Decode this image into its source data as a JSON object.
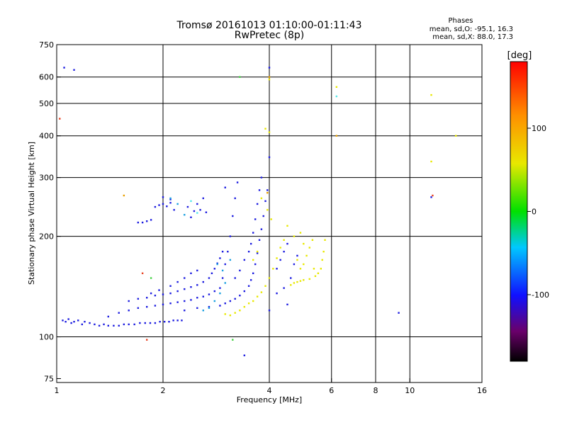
{
  "chart_data": {
    "type": "scatter",
    "title": "Tromsø 20161013 01:10:00-01:11:43",
    "subtitle": "RwPretec (8p)",
    "stats": {
      "heading": "Phases",
      "line_o": "mean, sd,O: -95.1, 16.3",
      "line_x": "mean, sd,X:  88.0, 17.3"
    },
    "xlabel": "Frequency [MHz]",
    "ylabel": "Stationary phase Virtual Height [km]",
    "x_scale": "log",
    "y_scale": "log",
    "xlim": [
      1,
      16
    ],
    "ylim": [
      73,
      750
    ],
    "x_ticks": [
      1,
      2,
      4,
      6,
      8,
      10,
      16
    ],
    "x_tick_labels": [
      "1",
      "2",
      "4",
      "6",
      "8",
      "10",
      "16"
    ],
    "x_grid": [
      2,
      4,
      6,
      8,
      10
    ],
    "y_ticks": [
      75,
      100,
      200,
      300,
      400,
      500,
      600,
      750
    ],
    "y_tick_labels": [
      "75",
      "100",
      "200",
      "300",
      "400",
      "500",
      "600",
      "750"
    ],
    "y_grid": [
      100,
      200,
      300,
      400,
      500,
      600
    ],
    "grid": true,
    "colorbar": {
      "label": "[deg]",
      "range": [
        -180,
        180
      ],
      "ticks": [
        -100,
        0,
        100
      ],
      "tick_labels": [
        "-100",
        "0",
        "100"
      ]
    },
    "series": [
      {
        "color": "#1c1ce0",
        "points": [
          [
            1.04,
            112
          ],
          [
            1.06,
            111
          ],
          [
            1.08,
            113
          ],
          [
            1.1,
            110
          ],
          [
            1.12,
            111
          ],
          [
            1.15,
            112
          ],
          [
            1.18,
            109
          ],
          [
            1.2,
            111
          ],
          [
            1.24,
            110
          ],
          [
            1.28,
            109
          ],
          [
            1.32,
            108
          ],
          [
            1.36,
            109
          ],
          [
            1.4,
            108
          ],
          [
            1.45,
            108
          ],
          [
            1.5,
            108
          ],
          [
            1.55,
            109
          ],
          [
            1.6,
            109
          ],
          [
            1.66,
            109
          ],
          [
            1.72,
            110
          ],
          [
            1.78,
            110
          ],
          [
            1.84,
            110
          ],
          [
            1.9,
            110
          ],
          [
            1.96,
            111
          ],
          [
            2.02,
            111
          ],
          [
            2.08,
            111
          ],
          [
            2.14,
            112
          ],
          [
            2.2,
            112
          ],
          [
            2.26,
            112
          ],
          [
            1.4,
            115
          ],
          [
            1.5,
            118
          ],
          [
            1.6,
            120
          ],
          [
            1.7,
            122
          ],
          [
            1.8,
            123
          ],
          [
            1.9,
            124
          ],
          [
            2.0,
            125
          ],
          [
            2.1,
            126
          ],
          [
            2.2,
            127
          ],
          [
            2.3,
            128
          ],
          [
            2.4,
            129
          ],
          [
            2.5,
            131
          ],
          [
            2.6,
            132
          ],
          [
            2.7,
            134
          ],
          [
            2.8,
            137
          ],
          [
            1.6,
            128
          ],
          [
            1.7,
            130
          ],
          [
            1.8,
            131
          ],
          [
            1.9,
            133
          ],
          [
            2.0,
            134
          ],
          [
            2.1,
            135
          ],
          [
            2.2,
            137
          ],
          [
            2.3,
            139
          ],
          [
            2.4,
            141
          ],
          [
            2.5,
            143
          ],
          [
            2.6,
            146
          ],
          [
            2.7,
            150
          ],
          [
            2.75,
            155
          ],
          [
            2.8,
            160
          ],
          [
            2.85,
            166
          ],
          [
            2.9,
            172
          ],
          [
            2.95,
            180
          ],
          [
            1.85,
            135
          ],
          [
            1.95,
            138
          ],
          [
            2.1,
            142
          ],
          [
            2.2,
            146
          ],
          [
            2.3,
            150
          ],
          [
            2.4,
            155
          ],
          [
            2.5,
            158
          ],
          [
            2.3,
            120
          ],
          [
            2.5,
            122
          ],
          [
            2.7,
            123
          ],
          [
            2.9,
            124
          ],
          [
            3.0,
            126
          ],
          [
            3.1,
            128
          ],
          [
            3.2,
            130
          ],
          [
            3.3,
            133
          ],
          [
            3.4,
            137
          ],
          [
            3.5,
            142
          ],
          [
            3.55,
            148
          ],
          [
            3.6,
            155
          ],
          [
            3.65,
            165
          ],
          [
            3.7,
            178
          ],
          [
            3.75,
            195
          ],
          [
            3.8,
            210
          ],
          [
            3.85,
            230
          ],
          [
            3.9,
            255
          ],
          [
            3.95,
            275
          ],
          [
            3.2,
            150
          ],
          [
            3.3,
            158
          ],
          [
            3.4,
            170
          ],
          [
            3.5,
            180
          ],
          [
            3.55,
            190
          ],
          [
            3.6,
            205
          ],
          [
            3.65,
            225
          ],
          [
            3.7,
            250
          ],
          [
            3.75,
            275
          ],
          [
            3.8,
            300
          ],
          [
            2.9,
            140
          ],
          [
            2.95,
            150
          ],
          [
            3.0,
            165
          ],
          [
            3.05,
            180
          ],
          [
            3.1,
            200
          ],
          [
            3.15,
            230
          ],
          [
            3.2,
            260
          ],
          [
            3.25,
            290
          ],
          [
            3.0,
            280
          ],
          [
            1.7,
            220
          ],
          [
            1.75,
            220
          ],
          [
            1.8,
            222
          ],
          [
            1.85,
            224
          ],
          [
            1.9,
            245
          ],
          [
            1.95,
            248
          ],
          [
            2.0,
            250
          ],
          [
            2.05,
            246
          ],
          [
            2.1,
            252
          ],
          [
            2.15,
            240
          ],
          [
            2.0,
            262
          ],
          [
            2.1,
            258
          ],
          [
            2.35,
            245
          ],
          [
            2.45,
            238
          ],
          [
            2.55,
            240
          ],
          [
            2.65,
            236
          ],
          [
            2.5,
            250
          ],
          [
            2.4,
            228
          ],
          [
            2.6,
            260
          ],
          [
            4.2,
            160
          ],
          [
            4.3,
            170
          ],
          [
            4.4,
            180
          ],
          [
            4.5,
            190
          ],
          [
            4.4,
            140
          ],
          [
            4.6,
            150
          ],
          [
            4.2,
            135
          ],
          [
            4.7,
            165
          ],
          [
            4.8,
            175
          ],
          [
            4.5,
            125
          ],
          [
            4.0,
            120
          ],
          [
            1.05,
            640
          ],
          [
            1.12,
            630
          ],
          [
            4.0,
            640
          ],
          [
            4.0,
            345
          ],
          [
            11.5,
            262
          ],
          [
            9.3,
            118
          ],
          [
            3.4,
            88
          ]
        ]
      },
      {
        "color": "#19a0e0",
        "points": [
          [
            2.6,
            120
          ],
          [
            2.7,
            122
          ],
          [
            2.8,
            128
          ],
          [
            2.9,
            135
          ],
          [
            3.0,
            145
          ],
          [
            3.1,
            170
          ],
          [
            2.85,
            165
          ],
          [
            2.95,
            158
          ],
          [
            2.3,
            232
          ],
          [
            2.2,
            250
          ],
          [
            2.1,
            260
          ]
        ]
      },
      {
        "color": "#e8e800",
        "points": [
          [
            3.0,
            117
          ],
          [
            3.1,
            116
          ],
          [
            3.2,
            118
          ],
          [
            3.3,
            120
          ],
          [
            3.4,
            123
          ],
          [
            3.5,
            126
          ],
          [
            3.6,
            128
          ],
          [
            3.7,
            132
          ],
          [
            3.8,
            136
          ],
          [
            3.9,
            142
          ],
          [
            4.0,
            150
          ],
          [
            4.1,
            160
          ],
          [
            4.2,
            172
          ],
          [
            4.3,
            185
          ],
          [
            4.4,
            195
          ],
          [
            3.95,
            240
          ],
          [
            3.8,
            260
          ],
          [
            4.05,
            225
          ],
          [
            4.6,
            143
          ],
          [
            4.7,
            145
          ],
          [
            4.8,
            146
          ],
          [
            4.9,
            147
          ],
          [
            5.0,
            148
          ],
          [
            5.2,
            149
          ],
          [
            5.4,
            152
          ],
          [
            5.5,
            155
          ],
          [
            5.6,
            160
          ],
          [
            5.65,
            170
          ],
          [
            5.7,
            180
          ],
          [
            5.75,
            195
          ],
          [
            5.0,
            165
          ],
          [
            5.1,
            175
          ],
          [
            5.2,
            185
          ],
          [
            5.3,
            195
          ],
          [
            4.9,
            160
          ],
          [
            4.8,
            170
          ],
          [
            5.35,
            160
          ],
          [
            4.5,
            215
          ],
          [
            4.7,
            200
          ],
          [
            4.9,
            205
          ],
          [
            5.0,
            190
          ],
          [
            3.6,
            170
          ],
          [
            3.7,
            180
          ],
          [
            4.0,
            410
          ],
          [
            3.9,
            420
          ],
          [
            4.0,
            590
          ],
          [
            6.2,
            560
          ],
          [
            11.5,
            530
          ],
          [
            13.5,
            400
          ],
          [
            11.5,
            335
          ]
        ]
      },
      {
        "color": "#e8a000",
        "points": [
          [
            1.55,
            265
          ],
          [
            4.0,
            600
          ],
          [
            6.2,
            400
          ],
          [
            3.95,
            270
          ]
        ]
      },
      {
        "color": "#40d040",
        "points": [
          [
            1.85,
            150
          ],
          [
            3.15,
            98
          ],
          [
            3.3,
            600
          ]
        ]
      },
      {
        "color": "#e84020",
        "points": [
          [
            1.8,
            98
          ],
          [
            1.75,
            155
          ],
          [
            1.02,
            450
          ],
          [
            11.6,
            265
          ]
        ]
      },
      {
        "color": "#50e8e8",
        "points": [
          [
            6.2,
            525
          ],
          [
            2.5,
            235
          ],
          [
            2.4,
            255
          ]
        ]
      }
    ]
  }
}
